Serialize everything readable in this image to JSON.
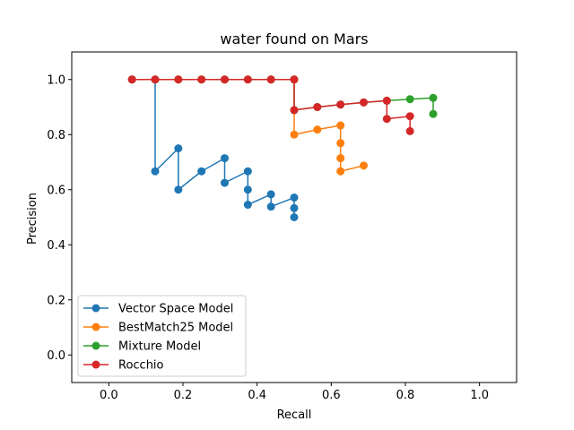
{
  "chart_data": {
    "type": "line",
    "title": "water found on Mars",
    "xlabel": "Recall",
    "ylabel": "Precision",
    "xlim": [
      -0.1,
      1.1
    ],
    "ylim": [
      -0.1,
      1.1
    ],
    "xticks": [
      "0.0",
      "0.2",
      "0.4",
      "0.6",
      "0.8",
      "1.0"
    ],
    "yticks": [
      "0.0",
      "0.2",
      "0.4",
      "0.6",
      "0.8",
      "1.0"
    ],
    "grid": false,
    "legend_position": "lower-left",
    "marker": "circle",
    "series": [
      {
        "name": "Vector Space Model",
        "color": "#1f77b4",
        "x": [
          0.0625,
          0.125,
          0.125,
          0.1875,
          0.1875,
          0.25,
          0.3125,
          0.3125,
          0.375,
          0.375,
          0.375,
          0.4375,
          0.4375,
          0.5,
          0.5,
          0.5
        ],
        "y": [
          1.0,
          1.0,
          0.6667,
          0.75,
          0.6,
          0.6667,
          0.7143,
          0.625,
          0.6667,
          0.6,
          0.5455,
          0.5833,
          0.5385,
          0.5714,
          0.5333,
          0.5
        ]
      },
      {
        "name": "BestMatch25 Model",
        "color": "#ff7f0e",
        "x": [
          0.0625,
          0.125,
          0.1875,
          0.25,
          0.3125,
          0.375,
          0.4375,
          0.5,
          0.5,
          0.5625,
          0.625,
          0.625,
          0.625,
          0.625,
          0.6875
        ],
        "y": [
          1.0,
          1.0,
          1.0,
          1.0,
          1.0,
          1.0,
          1.0,
          1.0,
          0.8,
          0.8182,
          0.8333,
          0.7692,
          0.7143,
          0.6667,
          0.6875
        ]
      },
      {
        "name": "Mixture Model",
        "color": "#2ca02c",
        "x": [
          0.0625,
          0.125,
          0.1875,
          0.25,
          0.3125,
          0.375,
          0.4375,
          0.5,
          0.5,
          0.5625,
          0.625,
          0.6875,
          0.75,
          0.8125,
          0.875,
          0.875
        ],
        "y": [
          1.0,
          1.0,
          1.0,
          1.0,
          1.0,
          1.0,
          1.0,
          1.0,
          0.8889,
          0.9,
          0.9091,
          0.9167,
          0.9231,
          0.9286,
          0.9333,
          0.875
        ]
      },
      {
        "name": "Rocchio",
        "color": "#d62728",
        "x": [
          0.0625,
          0.125,
          0.1875,
          0.25,
          0.3125,
          0.375,
          0.4375,
          0.5,
          0.5,
          0.5625,
          0.625,
          0.6875,
          0.75,
          0.75,
          0.8125,
          0.8125
        ],
        "y": [
          1.0,
          1.0,
          1.0,
          1.0,
          1.0,
          1.0,
          1.0,
          1.0,
          0.8889,
          0.9,
          0.9091,
          0.9167,
          0.9231,
          0.8571,
          0.8667,
          0.8125
        ]
      }
    ]
  }
}
